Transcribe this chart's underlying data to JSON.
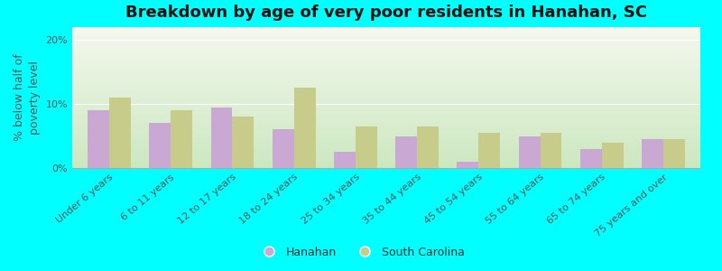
{
  "categories": [
    "Under 6 years",
    "6 to 11 years",
    "12 to 17 years",
    "18 to 24 years",
    "25 to 34 years",
    "35 to 44 years",
    "45 to 54 years",
    "55 to 64 years",
    "65 to 74 years",
    "75 years and over"
  ],
  "hanahan": [
    9.0,
    7.0,
    9.5,
    6.0,
    2.5,
    5.0,
    1.0,
    5.0,
    3.0,
    4.5
  ],
  "south_carolina": [
    11.0,
    9.0,
    8.0,
    12.5,
    6.5,
    6.5,
    5.5,
    5.5,
    4.0,
    4.5
  ],
  "hanahan_color": "#c9a8d4",
  "sc_color": "#c8cc8a",
  "title": "Breakdown by age of very poor residents in Hanahan, SC",
  "ylabel": "% below half of\npoverty level",
  "ylim": [
    0,
    22
  ],
  "yticks": [
    0,
    10,
    20
  ],
  "ytick_labels": [
    "0%",
    "10%",
    "20%"
  ],
  "background_color": "#00ffff",
  "grad_top": "#f5f8ee",
  "grad_bottom": "#cce8c0",
  "bar_width": 0.35,
  "title_fontsize": 13,
  "axis_label_fontsize": 9,
  "tick_fontsize": 8,
  "legend_hanahan": "Hanahan",
  "legend_sc": "South Carolina"
}
